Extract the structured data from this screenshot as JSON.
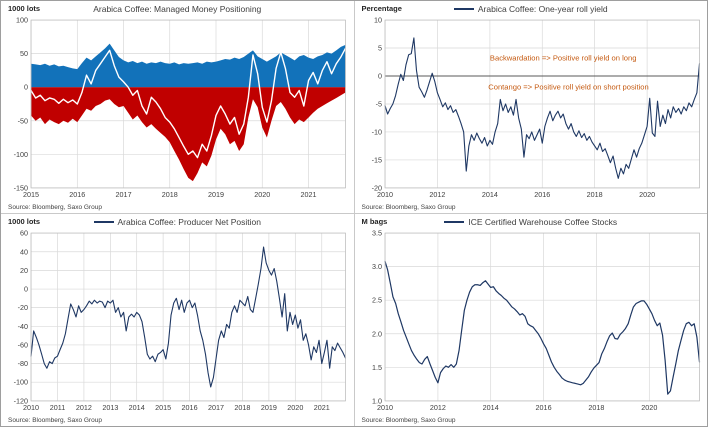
{
  "colors": {
    "navy": "#1f3864",
    "blue_area": "#1272ba",
    "red_area": "#c00000",
    "white_line": "#ffffff",
    "grid": "#d9d9d9",
    "plot_border": "#bfbfbf",
    "axis_text": "#404040",
    "annotation": "#c55a11",
    "zero_line": "#595959"
  },
  "chart_data": [
    {
      "type": "area",
      "title": "Arabica Coffee: Managed Money Positioning",
      "unit": "1000 lots",
      "source": "Source: Bloomberg, Saxo Group",
      "legend": false,
      "xlim": [
        2015,
        2021.8
      ],
      "ylim": [
        -150,
        100
      ],
      "xticks": [
        2015,
        2016,
        2017,
        2018,
        2019,
        2020,
        2021
      ],
      "xlabels": [
        "2015",
        "2016",
        "2017",
        "2018",
        "2019",
        "2020",
        "2021"
      ],
      "yticks": [
        100,
        50,
        0,
        -50,
        -100,
        -150
      ],
      "ylabels": [
        "100",
        "50",
        "0",
        "-50",
        "-100",
        "-150"
      ],
      "zeroline": false,
      "margins": {
        "l": 30,
        "t": 19,
        "r": 8,
        "b": 25
      },
      "series": [
        {
          "name": "long-positions",
          "kind": "area",
          "color": "#1272ba",
          "x0": 2015,
          "dx": 0.1,
          "values": [
            35,
            34,
            33,
            35,
            32,
            34,
            31,
            32,
            30,
            28,
            27,
            36,
            44,
            40,
            46,
            52,
            58,
            65,
            55,
            45,
            40,
            37,
            39,
            36,
            38,
            35,
            37,
            36,
            38,
            36,
            35,
            37,
            34,
            36,
            35,
            36,
            37,
            35,
            38,
            37,
            38,
            40,
            42,
            41,
            44,
            42,
            45,
            50,
            55,
            46,
            42,
            38,
            42,
            46,
            52,
            48,
            44,
            40,
            46,
            48,
            44,
            42,
            46,
            48,
            52,
            50,
            55,
            60,
            63
          ]
        },
        {
          "name": "short-positions",
          "kind": "area",
          "color": "#c00000",
          "x0": 2015,
          "dx": 0.1,
          "values": [
            -42,
            -50,
            -45,
            -55,
            -48,
            -52,
            -55,
            -50,
            -53,
            -47,
            -52,
            -42,
            -32,
            -35,
            -28,
            -25,
            -20,
            -18,
            -25,
            -30,
            -28,
            -38,
            -48,
            -42,
            -52,
            -60,
            -55,
            -62,
            -68,
            -74,
            -82,
            -95,
            -108,
            -122,
            -135,
            -140,
            -128,
            -112,
            -118,
            -102,
            -78,
            -62,
            -70,
            -85,
            -80,
            -95,
            -85,
            -45,
            -18,
            -30,
            -60,
            -75,
            -50,
            -28,
            -22,
            -32,
            -45,
            -55,
            -48,
            -52,
            -45,
            -38,
            -32,
            -28,
            -24,
            -20,
            -16,
            -12,
            -8
          ]
        },
        {
          "name": "net-position",
          "kind": "line",
          "color": "#ffffff",
          "width": 1.4,
          "x0": 2015,
          "dx": 0.1,
          "values": [
            -5,
            -16,
            -12,
            -20,
            -16,
            -18,
            -24,
            -18,
            -23,
            -19,
            -25,
            -8,
            18,
            5,
            25,
            35,
            45,
            55,
            32,
            15,
            8,
            0,
            -12,
            -5,
            -28,
            -40,
            -15,
            -22,
            -32,
            -45,
            -52,
            -62,
            -75,
            -88,
            -100,
            -95,
            -105,
            -85,
            -95,
            -72,
            -42,
            -28,
            -40,
            -55,
            -45,
            -70,
            -55,
            -15,
            48,
            20,
            -30,
            -52,
            -20,
            28,
            52,
            28,
            -8,
            -15,
            -5,
            -28,
            10,
            22,
            5,
            25,
            38,
            20,
            35,
            45,
            58
          ]
        }
      ]
    },
    {
      "type": "line",
      "title": "Arabica Coffee: One-year roll yield",
      "unit": "Percentage",
      "source": "Source: Bloomberg, Saxo Group",
      "legend": true,
      "xlim": [
        2010,
        2022.0
      ],
      "ylim": [
        -20,
        10
      ],
      "xticks": [
        2010,
        2012,
        2014,
        2016,
        2018,
        2020
      ],
      "xlabels": [
        "2010",
        "2012",
        "2014",
        "2016",
        "2018",
        "2020"
      ],
      "yticks": [
        10,
        5,
        0,
        -5,
        -10,
        -15,
        -20
      ],
      "ylabels": [
        "10",
        "5",
        "0",
        "-5",
        "-10",
        "-15",
        "-20"
      ],
      "zeroline": true,
      "margins": {
        "l": 30,
        "t": 19,
        "r": 8,
        "b": 25
      },
      "annotations": [
        {
          "text": "Backwardation => Positive roll yield on long",
          "x": 2016.8,
          "y": 2.8
        },
        {
          "text": "Contango => Positive roll yield on short position",
          "x": 2017.0,
          "y": -2.4
        }
      ],
      "series": [
        {
          "name": "one-year-roll-yield",
          "kind": "line",
          "color": "#1f3864",
          "width": 1.1,
          "x0": 2010,
          "dx": 0.1,
          "values": [
            -5.3,
            -6.8,
            -5.8,
            -5.0,
            -3.5,
            -1.5,
            0.3,
            -0.8,
            2.0,
            3.8,
            4.0,
            6.8,
            1.0,
            -2.0,
            -2.8,
            -3.8,
            -2.5,
            -1.0,
            0.5,
            -1.0,
            -3.0,
            -4.2,
            -5.5,
            -4.8,
            -6.0,
            -5.3,
            -6.5,
            -6.0,
            -7.2,
            -8.5,
            -10.0,
            -17.0,
            -12.5,
            -10.5,
            -11.5,
            -10.2,
            -11.2,
            -12.0,
            -11.0,
            -12.5,
            -11.5,
            -12.2,
            -10.0,
            -8.5,
            -4.2,
            -6.2,
            -5.0,
            -6.5,
            -5.5,
            -7.0,
            -4.2,
            -7.5,
            -9.5,
            -14.5,
            -10.5,
            -11.2,
            -10.0,
            -11.5,
            -10.5,
            -9.5,
            -12.0,
            -9.0,
            -7.5,
            -6.3,
            -8.0,
            -7.0,
            -6.3,
            -7.5,
            -6.8,
            -8.5,
            -9.5,
            -8.5,
            -10.0,
            -10.8,
            -9.8,
            -11.0,
            -10.3,
            -11.5,
            -10.8,
            -11.8,
            -12.5,
            -13.2,
            -12.0,
            -13.5,
            -13.0,
            -14.2,
            -15.5,
            -14.3,
            -16.5,
            -18.3,
            -16.5,
            -17.5,
            -15.8,
            -16.5,
            -14.8,
            -13.2,
            -14.5,
            -13.0,
            -12.0,
            -10.5,
            -9.0,
            -4.0,
            -10.2,
            -10.8,
            -4.5,
            -9.0,
            -7.0,
            -8.5,
            -6.0,
            -7.5,
            -5.5,
            -6.5,
            -5.8,
            -6.8,
            -5.5,
            -6.2,
            -4.8,
            -5.5,
            -4.2,
            -3.0,
            2.2
          ]
        }
      ]
    },
    {
      "type": "line",
      "title": "Arabica Coffee: Producer Net Position",
      "unit": "1000 lots",
      "source": "Source: Bloomberg, Saxo Group",
      "legend": true,
      "xlim": [
        2010,
        2021.9
      ],
      "ylim": [
        -120,
        60
      ],
      "xticks": [
        2010,
        2011,
        2012,
        2013,
        2014,
        2015,
        2016,
        2017,
        2018,
        2019,
        2020,
        2021
      ],
      "xlabels": [
        "2010",
        "2011",
        "2012",
        "2013",
        "2014",
        "2015",
        "2016",
        "2017",
        "2018",
        "2019",
        "2020",
        "2021"
      ],
      "yticks": [
        60,
        40,
        20,
        0,
        -20,
        -40,
        -60,
        -80,
        -100,
        -120
      ],
      "ylabels": [
        "60",
        "40",
        "20",
        "0",
        "-20",
        "-40",
        "-60",
        "-80",
        "-100",
        "-120"
      ],
      "zeroline": false,
      "margins": {
        "l": 30,
        "t": 19,
        "r": 8,
        "b": 25
      },
      "series": [
        {
          "name": "producer-net-position",
          "kind": "line",
          "color": "#1f3864",
          "width": 1.1,
          "x0": 2010,
          "dx": 0.1,
          "values": [
            -72,
            -45,
            -52,
            -60,
            -70,
            -80,
            -85,
            -78,
            -80,
            -74,
            -72,
            -65,
            -58,
            -48,
            -32,
            -16,
            -22,
            -30,
            -18,
            -25,
            -22,
            -18,
            -13,
            -16,
            -12,
            -15,
            -13,
            -14,
            -20,
            -13,
            -15,
            -12,
            -25,
            -20,
            -30,
            -25,
            -45,
            -30,
            -27,
            -30,
            -25,
            -28,
            -35,
            -52,
            -70,
            -75,
            -72,
            -78,
            -70,
            -68,
            -65,
            -75,
            -58,
            -28,
            -15,
            -10,
            -22,
            -12,
            -25,
            -15,
            -12,
            -20,
            -15,
            -28,
            -45,
            -55,
            -70,
            -90,
            -105,
            -95,
            -75,
            -55,
            -45,
            -52,
            -38,
            -42,
            -25,
            -18,
            -25,
            -12,
            -15,
            -18,
            -8,
            -22,
            -25,
            -10,
            5,
            22,
            45,
            28,
            20,
            15,
            22,
            8,
            -10,
            -30,
            -5,
            -45,
            -25,
            -38,
            -28,
            -42,
            -33,
            -55,
            -48,
            -60,
            -76,
            -62,
            -68,
            -55,
            -80,
            -68,
            -55,
            -85,
            -62,
            -66,
            -58,
            -63,
            -68,
            -74
          ]
        }
      ]
    },
    {
      "type": "line",
      "title": "ICE Certified Warehouse Coffee Stocks",
      "unit": "M bags",
      "source": "Source: Bloomberg, Saxo Group",
      "legend": true,
      "xlim": [
        2010,
        2021.9
      ],
      "ylim": [
        1.0,
        3.5
      ],
      "xticks": [
        2010,
        2012,
        2014,
        2016,
        2018,
        2020
      ],
      "xlabels": [
        "2010",
        "2012",
        "2014",
        "2016",
        "2018",
        "2020"
      ],
      "yticks": [
        3.5,
        3.0,
        2.5,
        2.0,
        1.5,
        1.0
      ],
      "ylabels": [
        "3.5",
        "3.0",
        "2.5",
        "2.0",
        "1.5",
        "1.0"
      ],
      "zeroline": false,
      "margins": {
        "l": 30,
        "t": 19,
        "r": 8,
        "b": 25
      },
      "series": [
        {
          "name": "warehouse-coffee-stocks",
          "kind": "line",
          "color": "#1f3864",
          "width": 1.2,
          "x0": 2010,
          "dx": 0.1,
          "values": [
            3.08,
            2.95,
            2.75,
            2.55,
            2.45,
            2.3,
            2.18,
            2.05,
            1.95,
            1.85,
            1.75,
            1.68,
            1.62,
            1.57,
            1.55,
            1.62,
            1.66,
            1.55,
            1.45,
            1.35,
            1.27,
            1.42,
            1.48,
            1.52,
            1.5,
            1.54,
            1.5,
            1.55,
            1.75,
            2.05,
            2.35,
            2.5,
            2.62,
            2.7,
            2.73,
            2.73,
            2.72,
            2.76,
            2.79,
            2.74,
            2.69,
            2.7,
            2.64,
            2.6,
            2.57,
            2.53,
            2.5,
            2.45,
            2.4,
            2.37,
            2.33,
            2.28,
            2.3,
            2.26,
            2.15,
            2.12,
            2.1,
            2.05,
            2.0,
            1.93,
            1.85,
            1.78,
            1.68,
            1.58,
            1.5,
            1.44,
            1.39,
            1.34,
            1.31,
            1.29,
            1.28,
            1.27,
            1.26,
            1.25,
            1.24,
            1.26,
            1.31,
            1.36,
            1.43,
            1.49,
            1.53,
            1.57,
            1.7,
            1.78,
            1.88,
            1.97,
            2.01,
            1.93,
            1.92,
            1.99,
            2.03,
            2.08,
            2.15,
            2.28,
            2.4,
            2.45,
            2.47,
            2.49,
            2.49,
            2.44,
            2.37,
            2.3,
            2.2,
            2.12,
            2.16,
            1.98,
            1.6,
            1.1,
            1.15,
            1.35,
            1.55,
            1.75,
            1.9,
            2.05,
            2.15,
            2.17,
            2.12,
            2.15,
            1.95,
            1.58
          ]
        }
      ]
    }
  ]
}
